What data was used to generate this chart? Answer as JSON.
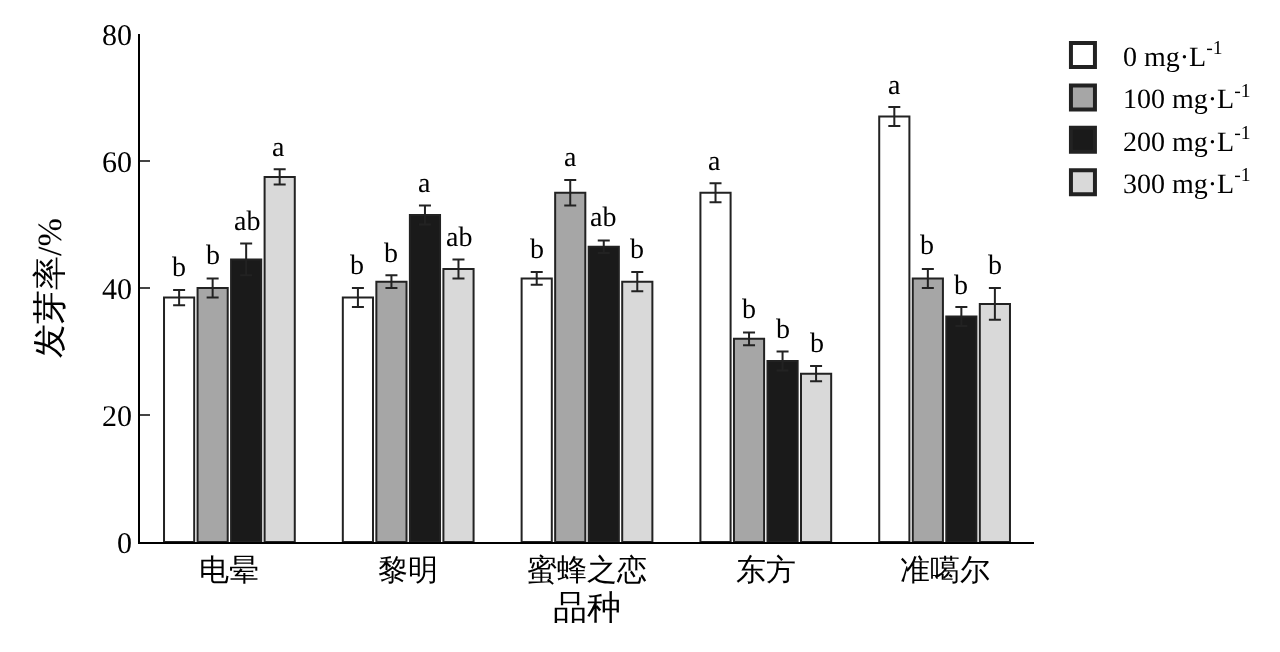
{
  "chart_data": {
    "type": "bar",
    "xlabel": "品种",
    "ylabel": "发芽率/%",
    "categories": [
      "电晕",
      "黎明",
      "蜜蜂之恋",
      "东方",
      "准噶尔"
    ],
    "ylim": [
      0,
      80
    ],
    "yticks": [
      0,
      20,
      40,
      60,
      80
    ],
    "grid": false,
    "legend": "top right",
    "series": [
      {
        "name": "0 mg·L$^{-1}$",
        "color": "#ffffff",
        "values": [
          38.5,
          38.5,
          41.5,
          55,
          67
        ],
        "errors": [
          1.2,
          1.5,
          1,
          1.5,
          1.5
        ],
        "value_labels": [
          "b",
          "b",
          "b",
          "a",
          "a"
        ]
      },
      {
        "name": "100 mg·L$^{-1}$",
        "color": "#a6a6a6",
        "values": [
          40,
          41,
          55,
          32,
          41.5
        ],
        "errors": [
          1.5,
          1,
          2,
          1,
          1.5
        ],
        "value_labels": [
          "b",
          "b",
          "a",
          "b",
          "b"
        ]
      },
      {
        "name": "200 mg·L$^{-1}$",
        "color": "#1a1a1a",
        "values": [
          44.5,
          51.5,
          46.5,
          28.5,
          35.5
        ],
        "errors": [
          2.5,
          1.5,
          1,
          1.5,
          1.5
        ],
        "value_labels": [
          "ab",
          "a",
          "ab",
          "b",
          "b"
        ]
      },
      {
        "name": "300 mg·L$^{-1}$",
        "color": "#d9d9d9",
        "values": [
          57.5,
          43,
          41,
          26.5,
          37.5
        ],
        "errors": [
          1.2,
          1.5,
          1.5,
          1.2,
          2.5
        ],
        "value_labels": [
          "a",
          "ab",
          "b",
          "b",
          "b"
        ]
      }
    ]
  }
}
